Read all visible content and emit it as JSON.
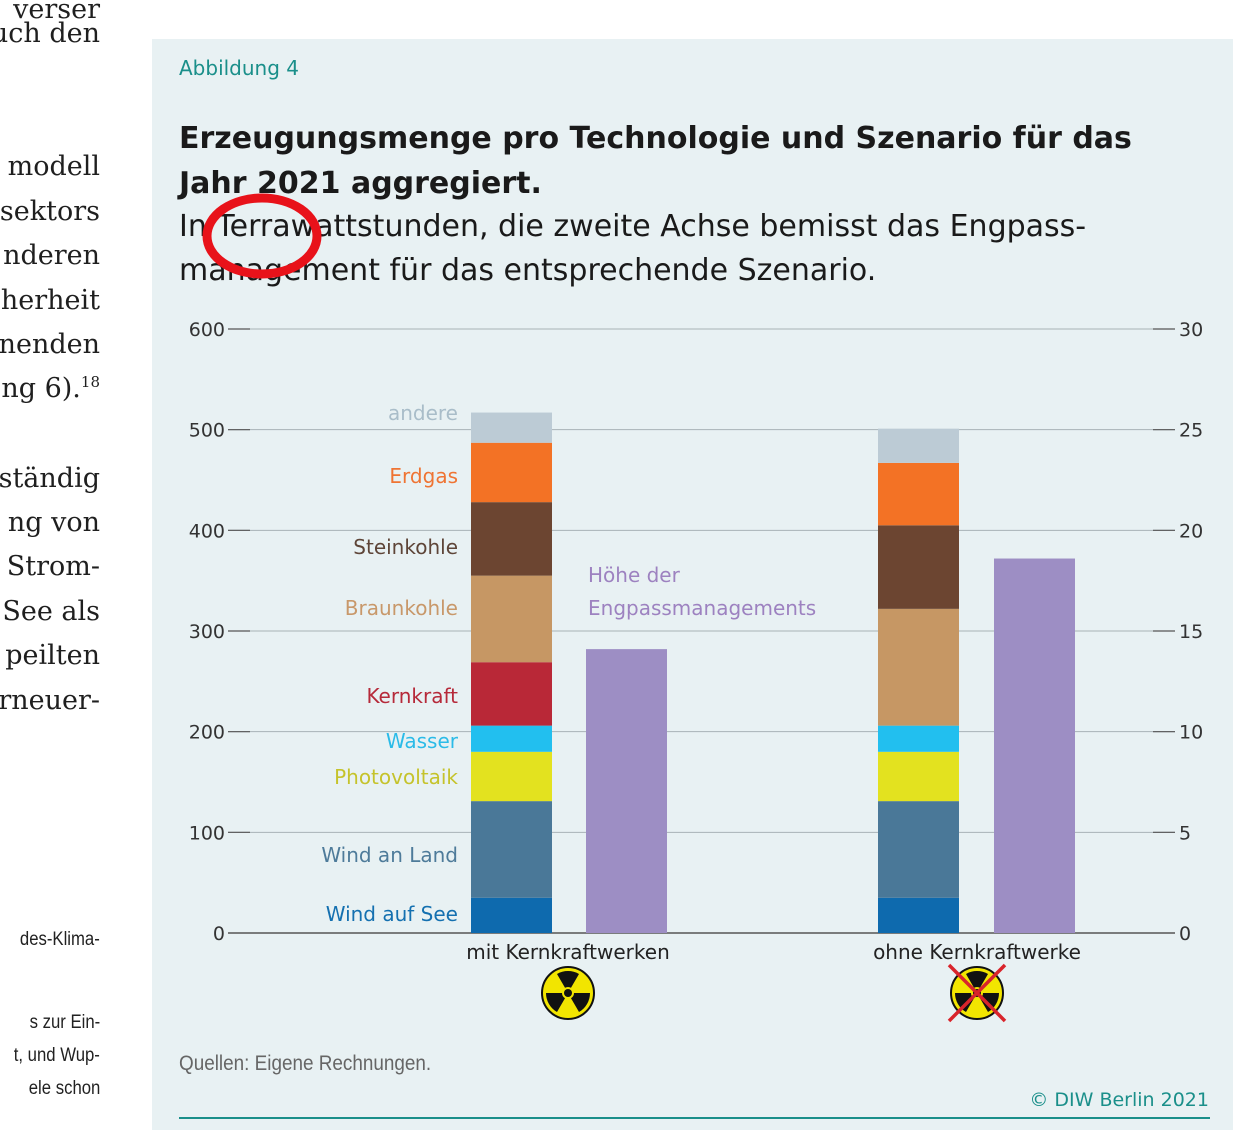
{
  "body_text": {
    "lines": [
      "verser",
      "uch den",
      "modell",
      "sektors",
      "nderen",
      "herheit",
      "nenden",
      "ng 6).",
      "ständig",
      "ng von",
      "Strom-",
      "See als",
      "peilten",
      "rneuer-"
    ],
    "footnote_ref": "18",
    "footnotes": [
      "des-Klima-",
      "s zur Ein-",
      "t, und Wup-",
      "ele schon"
    ]
  },
  "figure": {
    "label": "Abbildung 4",
    "title": "Erzeugungsmenge pro Technologie und Szenario für das Jahr 2021 aggregiert.",
    "subtitle": "In Terrawattstunden, die zweite Achse bemisst das Engpass­management für das entsprechende Szenario.",
    "source": "Quellen: Eigene Rechnungen.",
    "copyright": "© DIW Berlin 2021"
  },
  "chart_data": {
    "type": "bar",
    "stacked": true,
    "unit": "TWh",
    "categories": [
      "mit Kernkraftwerken",
      "ohne Kernkraftwerke"
    ],
    "y_left": {
      "ticks": [
        "600",
        "500",
        "400",
        "300",
        "200",
        "100",
        "0"
      ],
      "ylim": [
        0,
        600
      ]
    },
    "y_right": {
      "ticks": [
        "30",
        "25",
        "20",
        "15",
        "10",
        "5",
        "0"
      ],
      "ylim": [
        0,
        30
      ]
    },
    "series": [
      {
        "name": "Wind auf See",
        "color": "#0e6aae",
        "values": [
          35,
          35
        ]
      },
      {
        "name": "Wind an Land",
        "color": "#4a7898",
        "values": [
          96,
          96
        ]
      },
      {
        "name": "Photovoltaik",
        "color": "#e3e21f",
        "values": [
          49,
          49
        ]
      },
      {
        "name": "Wasser",
        "color": "#22bfef",
        "values": [
          26,
          26
        ]
      },
      {
        "name": "Kernkraft",
        "color": "#b92837",
        "values": [
          63,
          0
        ]
      },
      {
        "name": "Braunkohle",
        "color": "#c69764",
        "values": [
          86,
          116
        ]
      },
      {
        "name": "Steinkohle",
        "color": "#6c4531",
        "values": [
          73,
          83
        ]
      },
      {
        "name": "Erdgas",
        "color": "#f37225",
        "values": [
          59,
          62
        ]
      },
      {
        "name": "andere",
        "color": "#bccbd5",
        "values": [
          30,
          34
        ]
      }
    ],
    "legend_colors": {
      "Wind auf See": "#1470b0",
      "Wind an Land": "#4e7b9a",
      "Photovoltaik": "#c5c32b",
      "Wasser": "#2bbbe8",
      "Kernkraft": "#b62a3a",
      "Braunkohle": "#c8986a",
      "Steinkohle": "#5e4538",
      "Erdgas": "#ef7433",
      "andere": "#a9bdc9"
    },
    "secondary_series": {
      "name": "Höhe der Engpassmanagements",
      "label_lines": [
        "Höhe der",
        "Engpassmanagements"
      ],
      "color": "#9d8ec4",
      "label_color": "#9d82c0",
      "values": [
        14.1,
        18.6
      ]
    },
    "grid": true
  }
}
